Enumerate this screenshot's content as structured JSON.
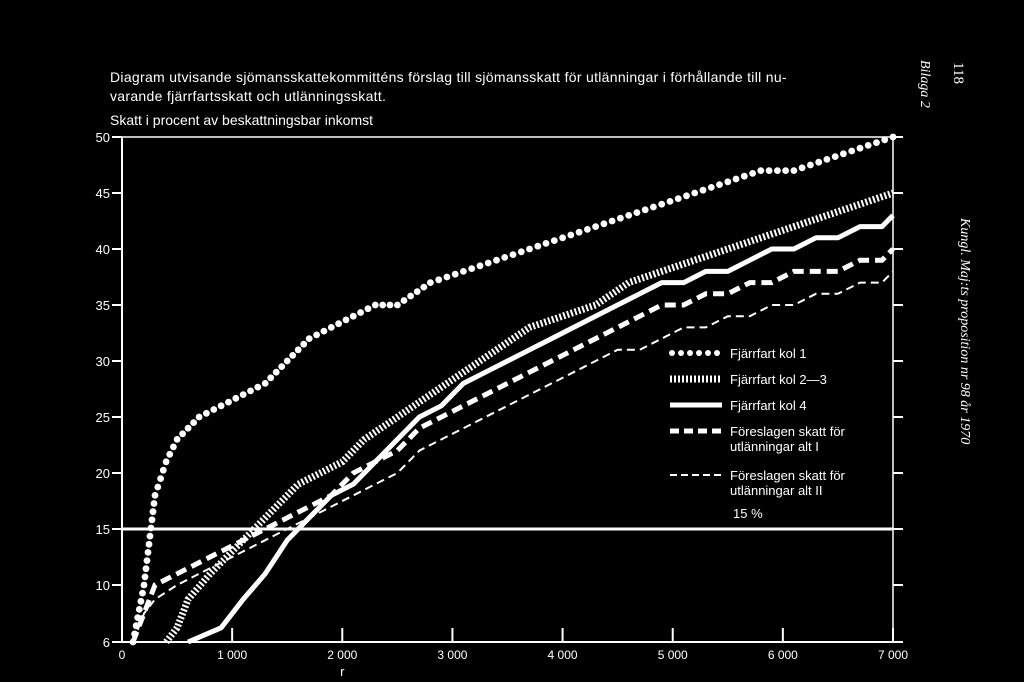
{
  "title_line1": "Diagram utvisande sjömansskattekommitténs förslag till sjömansskatt för utlänningar i förhållande till nu-",
  "title_line2": "varande fjärrfartsskatt och utlänningsskatt.",
  "page_number": "118",
  "side_label_top": "Bilaga 2",
  "side_label_right": "Kungl. Maj:ts proposition nr 98 år 1970",
  "reference_line_label": "15 %",
  "chart_data": {
    "type": "line",
    "ylabel": "Skatt i procent av beskattningsbar inkomst",
    "xlabel": "r",
    "xlim": [
      0,
      7000
    ],
    "ylim": [
      6,
      50
    ],
    "x_ticks": [
      "0",
      "1 000",
      "2 000",
      "3 000",
      "4 000",
      "5 000",
      "6 000",
      "7 000"
    ],
    "y_ticks": [
      "6",
      "10",
      "15",
      "20",
      "25",
      "30",
      "35",
      "40",
      "45",
      "50"
    ],
    "reference_line": {
      "y": 15,
      "label": "15 %"
    },
    "legend_position": "right",
    "series": [
      {
        "name": "Fjärrfart kol 1",
        "style": "dots",
        "x": [
          100,
          200,
          300,
          400,
          500,
          700,
          900,
          1100,
          1300,
          1500,
          1700,
          1900,
          2100,
          2300,
          2500,
          2800,
          3100,
          3400,
          3700,
          4000,
          4300,
          4600,
          4900,
          5200,
          5500,
          5800,
          6100,
          6400,
          6700,
          7000
        ],
        "y": [
          6,
          10,
          18,
          21,
          23,
          25,
          26,
          27,
          28,
          30,
          32,
          33,
          34,
          35,
          35,
          37,
          38,
          39,
          40,
          41,
          42,
          43,
          44,
          45,
          46,
          47,
          47,
          48,
          49,
          50
        ]
      },
      {
        "name": "Fjärrfart kol 2—3",
        "style": "hatched",
        "x": [
          400,
          500,
          600,
          800,
          1000,
          1200,
          1400,
          1600,
          1800,
          2000,
          2200,
          2500,
          2800,
          3100,
          3400,
          3700,
          4000,
          4300,
          4600,
          4900,
          5200,
          5500,
          5800,
          6100,
          6400,
          6700,
          7000
        ],
        "y": [
          6,
          7,
          9,
          11,
          13,
          15,
          17,
          19,
          20,
          21,
          23,
          25,
          27,
          29,
          31,
          33,
          34,
          35,
          37,
          38,
          39,
          40,
          41,
          42,
          43,
          44,
          45
        ]
      },
      {
        "name": "Fjärrfart kol 4",
        "style": "solid",
        "x": [
          600,
          900,
          1100,
          1300,
          1500,
          1700,
          1900,
          2100,
          2300,
          2500,
          2700,
          2900,
          3100,
          3300,
          3500,
          3700,
          3900,
          4100,
          4300,
          4500,
          4700,
          4900,
          5100,
          5300,
          5500,
          5700,
          5900,
          6100,
          6300,
          6500,
          6700,
          6900,
          7000
        ],
        "y": [
          6,
          7,
          9,
          11,
          14,
          16,
          18,
          19,
          21,
          23,
          25,
          26,
          28,
          29,
          30,
          31,
          32,
          33,
          34,
          35,
          36,
          37,
          37,
          38,
          38,
          39,
          40,
          40,
          41,
          41,
          42,
          42,
          43
        ]
      },
      {
        "name": "Föreslagen skatt för utlänningar alt I",
        "style": "bold-dashed",
        "x": [
          100,
          200,
          300,
          500,
          700,
          900,
          1100,
          1300,
          1500,
          1700,
          1900,
          2100,
          2300,
          2500,
          2700,
          2900,
          3100,
          3300,
          3500,
          3700,
          3900,
          4100,
          4300,
          4500,
          4700,
          4900,
          5100,
          5300,
          5500,
          5700,
          5900,
          6100,
          6300,
          6500,
          6700,
          6900,
          7000
        ],
        "y": [
          6,
          8,
          10,
          11,
          12,
          13,
          14,
          15,
          16,
          17,
          18,
          20,
          21,
          22,
          24,
          25,
          26,
          27,
          28,
          29,
          30,
          31,
          32,
          33,
          34,
          35,
          35,
          36,
          36,
          37,
          37,
          38,
          38,
          38,
          39,
          39,
          40
        ]
      },
      {
        "name": "Föreslagen skatt för utlänningar alt II",
        "style": "thin-dashed",
        "x": [
          100,
          200,
          300,
          500,
          700,
          900,
          1100,
          1300,
          1500,
          1700,
          1900,
          2100,
          2300,
          2500,
          2700,
          2900,
          3100,
          3300,
          3500,
          3700,
          3900,
          4100,
          4300,
          4500,
          4700,
          4900,
          5100,
          5300,
          5500,
          5700,
          5900,
          6100,
          6300,
          6500,
          6700,
          6900,
          7000
        ],
        "y": [
          6,
          8,
          9,
          10,
          11,
          12,
          13,
          14,
          15,
          16,
          17,
          18,
          19,
          20,
          22,
          23,
          24,
          25,
          26,
          27,
          28,
          29,
          30,
          31,
          31,
          32,
          33,
          33,
          34,
          34,
          35,
          35,
          36,
          36,
          37,
          37,
          38
        ]
      }
    ]
  }
}
